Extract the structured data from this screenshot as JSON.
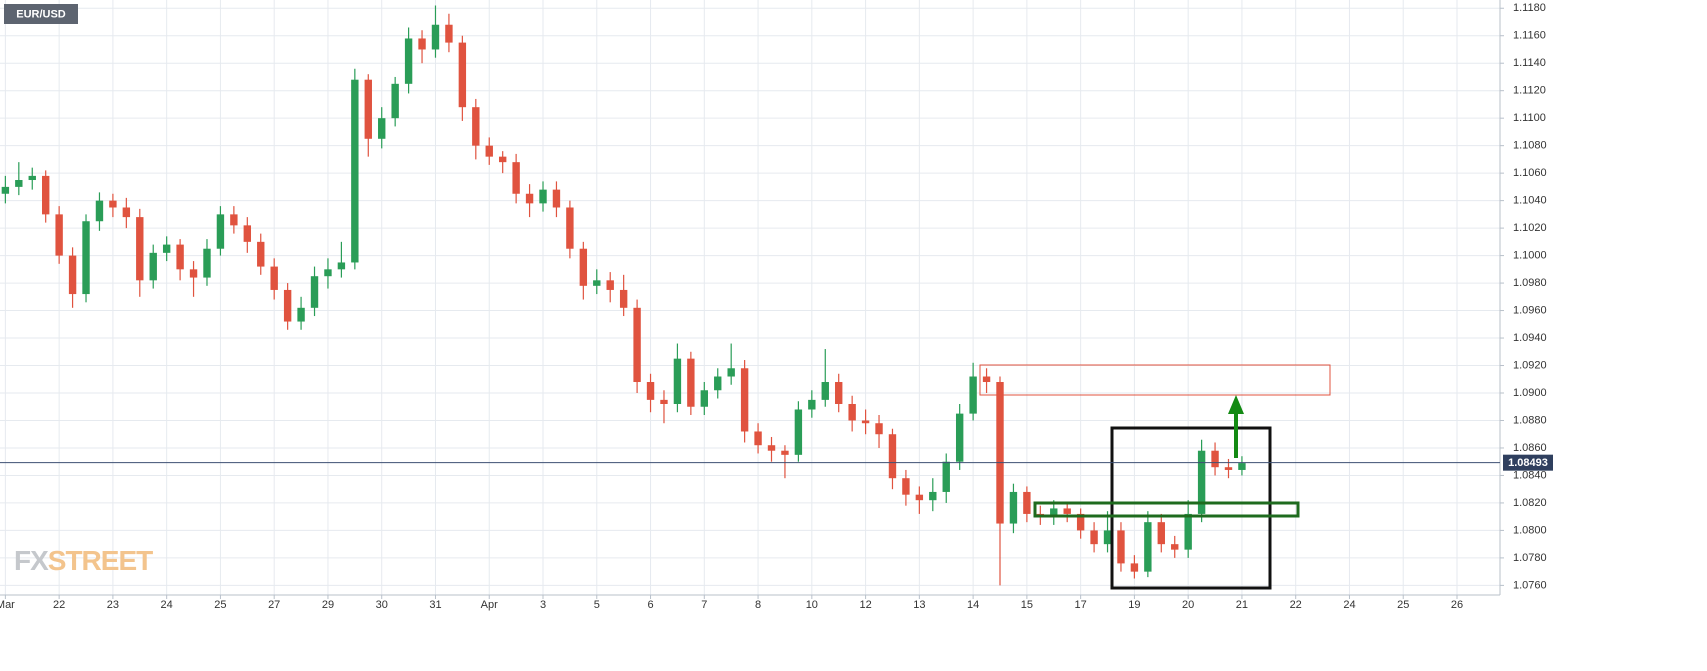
{
  "chart_data": {
    "type": "candlestick",
    "title": "EUR/USD",
    "logo": {
      "left": "FX",
      "right": "STREET"
    },
    "up_color": "#2a9d57",
    "down_color": "#e0533f",
    "grid": true,
    "x": [
      0,
      0.25,
      0.5,
      0.75,
      1,
      1.25,
      1.5,
      1.75,
      2,
      2.25,
      2.5,
      2.75,
      3,
      3.25,
      3.5,
      3.75,
      4,
      4.25,
      4.5,
      4.75,
      5,
      5.25,
      5.5,
      5.75,
      6,
      6.25,
      6.5,
      6.75,
      7,
      7.25,
      7.5,
      7.75,
      8,
      8.25,
      8.5,
      8.75,
      9,
      9.25,
      9.5,
      9.75,
      10,
      10.25,
      10.5,
      10.75,
      11,
      11.25,
      11.5,
      11.75,
      12,
      12.25,
      12.5,
      12.75,
      13,
      13.25,
      13.5,
      13.75,
      14,
      14.25,
      14.5,
      14.75,
      15,
      15.25,
      15.5,
      15.75,
      16,
      16.25,
      16.5,
      16.75,
      17,
      17.25,
      17.5,
      17.75,
      18,
      18.25,
      18.5,
      18.75,
      19,
      19.25,
      19.5,
      19.75,
      20,
      20.25,
      20.5,
      20.75,
      21,
      21.25,
      21.5,
      21.75,
      22,
      22.25,
      22.5,
      22.75,
      23
    ],
    "open": [
      1.1045,
      1.105,
      1.1055,
      1.1058,
      1.103,
      1.1,
      1.0972,
      1.1025,
      1.104,
      1.1035,
      1.1028,
      1.0982,
      1.1002,
      1.1008,
      1.099,
      1.0984,
      1.1005,
      1.103,
      1.1022,
      1.101,
      1.0992,
      1.0975,
      1.0952,
      1.0962,
      1.0985,
      1.099,
      1.0995,
      1.1128,
      1.1085,
      1.11,
      1.1125,
      1.1158,
      1.115,
      1.1168,
      1.1155,
      1.1108,
      1.108,
      1.1072,
      1.1068,
      1.1045,
      1.1038,
      1.1048,
      1.1035,
      1.1005,
      1.0978,
      1.0982,
      1.0975,
      1.0962,
      1.0908,
      1.0895,
      1.0892,
      1.0925,
      1.089,
      1.0902,
      1.0912,
      1.0918,
      1.0872,
      1.0862,
      1.0858,
      1.0855,
      1.0888,
      1.0895,
      1.0908,
      1.0892,
      1.088,
      1.0878,
      1.087,
      1.0838,
      1.0826,
      1.0822,
      1.0828,
      1.085,
      1.0885,
      1.0912,
      1.0908,
      1.0805,
      1.0828,
      1.0812,
      1.081,
      1.0816,
      1.0812,
      1.08,
      1.079,
      1.08,
      1.0776,
      1.077,
      1.0806,
      1.079,
      1.0786,
      1.0812,
      1.0858,
      1.0846,
      1.0844
    ],
    "high": [
      1.1058,
      1.1068,
      1.1064,
      1.1062,
      1.1036,
      1.1006,
      1.103,
      1.1046,
      1.1045,
      1.1042,
      1.1034,
      1.1008,
      1.1014,
      1.1012,
      1.0996,
      1.1012,
      1.1036,
      1.1036,
      1.1028,
      1.1016,
      1.0998,
      1.098,
      1.097,
      1.0992,
      1.0998,
      1.101,
      1.1136,
      1.1132,
      1.1108,
      1.113,
      1.1166,
      1.1164,
      1.1182,
      1.1176,
      1.116,
      1.1114,
      1.1086,
      1.1076,
      1.1074,
      1.1052,
      1.1054,
      1.1054,
      1.104,
      1.101,
      1.099,
      1.0988,
      1.0986,
      1.0968,
      1.0914,
      1.0902,
      1.0936,
      1.093,
      1.0908,
      1.0918,
      1.0936,
      1.0924,
      1.0878,
      1.0868,
      1.0862,
      1.0894,
      1.0902,
      1.0932,
      1.0914,
      1.0898,
      1.0888,
      1.0884,
      1.0874,
      1.0844,
      1.0832,
      1.0838,
      1.0856,
      1.0892,
      1.0922,
      1.0918,
      1.0912,
      1.0834,
      1.0832,
      1.0818,
      1.0822,
      1.082,
      1.0816,
      1.0806,
      1.0814,
      1.0806,
      1.0782,
      1.0814,
      1.0812,
      1.0796,
      1.0822,
      1.0866,
      1.0864,
      1.0852,
      1.0854
    ],
    "low": [
      1.1038,
      1.1044,
      1.1048,
      1.1024,
      1.0994,
      1.0962,
      1.0966,
      1.1018,
      1.1028,
      1.102,
      1.097,
      1.0976,
      1.0996,
      1.0982,
      1.097,
      1.0978,
      1.1,
      1.1016,
      1.1002,
      1.0986,
      1.0968,
      1.0946,
      1.0946,
      1.0956,
      1.0976,
      1.0984,
      1.099,
      1.1072,
      1.1078,
      1.1094,
      1.1118,
      1.114,
      1.1144,
      1.1148,
      1.1098,
      1.107,
      1.1066,
      1.106,
      1.1038,
      1.1028,
      1.1032,
      1.1028,
      1.0998,
      1.0968,
      1.0972,
      1.0966,
      1.0956,
      1.09,
      1.0886,
      1.0878,
      1.0886,
      1.0884,
      1.0884,
      1.0896,
      1.0906,
      1.0864,
      1.0856,
      1.085,
      1.0838,
      1.085,
      1.0882,
      1.089,
      1.0886,
      1.0872,
      1.087,
      1.086,
      1.083,
      1.0818,
      1.0812,
      1.0814,
      1.082,
      1.0844,
      1.088,
      1.09,
      1.076,
      1.0798,
      1.0806,
      1.0804,
      1.0804,
      1.0806,
      1.0794,
      1.0784,
      1.0784,
      1.077,
      1.0765,
      1.0766,
      1.0784,
      1.078,
      1.078,
      1.0806,
      1.084,
      1.0838,
      1.084
    ],
    "close": [
      1.105,
      1.1055,
      1.1058,
      1.103,
      1.1,
      1.0972,
      1.1025,
      1.104,
      1.1035,
      1.1028,
      1.0982,
      1.1002,
      1.1008,
      1.099,
      1.0984,
      1.1005,
      1.103,
      1.1022,
      1.101,
      1.0992,
      1.0975,
      1.0952,
      1.0962,
      1.0985,
      1.099,
      1.0995,
      1.1128,
      1.1085,
      1.11,
      1.1125,
      1.1158,
      1.115,
      1.1168,
      1.1155,
      1.1108,
      1.108,
      1.1072,
      1.1068,
      1.1045,
      1.1038,
      1.1048,
      1.1035,
      1.1005,
      1.0978,
      1.0982,
      1.0975,
      1.0962,
      1.0908,
      1.0895,
      1.0892,
      1.0925,
      1.089,
      1.0902,
      1.0912,
      1.0918,
      1.0872,
      1.0862,
      1.0858,
      1.0855,
      1.0888,
      1.0895,
      1.0908,
      1.0892,
      1.088,
      1.0878,
      1.087,
      1.0838,
      1.0826,
      1.0822,
      1.0828,
      1.085,
      1.0885,
      1.0912,
      1.0908,
      1.0805,
      1.0828,
      1.0812,
      1.081,
      1.0816,
      1.0812,
      1.08,
      1.079,
      1.08,
      1.0776,
      1.077,
      1.0806,
      1.079,
      1.0786,
      1.0812,
      1.0858,
      1.0846,
      1.0844,
      1.0849
    ],
    "last_price": {
      "value": 1.08493,
      "label": "1.08493"
    },
    "xlim": [
      -0.1,
      27.8
    ],
    "xticks": [
      {
        "value": 0,
        "label": "Mar"
      },
      {
        "value": 1,
        "label": "22"
      },
      {
        "value": 2,
        "label": "23"
      },
      {
        "value": 3,
        "label": "24"
      },
      {
        "value": 4,
        "label": "25"
      },
      {
        "value": 5,
        "label": "27"
      },
      {
        "value": 6,
        "label": "29"
      },
      {
        "value": 7,
        "label": "30"
      },
      {
        "value": 8,
        "label": "31"
      },
      {
        "value": 9,
        "label": "Apr"
      },
      {
        "value": 10,
        "label": "3"
      },
      {
        "value": 11,
        "label": "5"
      },
      {
        "value": 12,
        "label": "6"
      },
      {
        "value": 13,
        "label": "7"
      },
      {
        "value": 14,
        "label": "8"
      },
      {
        "value": 15,
        "label": "10"
      },
      {
        "value": 16,
        "label": "12"
      },
      {
        "value": 17,
        "label": "13"
      },
      {
        "value": 18,
        "label": "14"
      },
      {
        "value": 19,
        "label": "15"
      },
      {
        "value": 20,
        "label": "17"
      },
      {
        "value": 21,
        "label": "19"
      },
      {
        "value": 22,
        "label": "20"
      },
      {
        "value": 23,
        "label": "21"
      },
      {
        "value": 24,
        "label": "22"
      },
      {
        "value": 25,
        "label": "24"
      },
      {
        "value": 26,
        "label": "25"
      },
      {
        "value": 27,
        "label": "26"
      }
    ],
    "ylim": [
      1.0753,
      1.1186
    ],
    "yticks": [
      {
        "value": 1.076,
        "label": "1.0760"
      },
      {
        "value": 1.078,
        "label": "1.0780"
      },
      {
        "value": 1.08,
        "label": "1.0800"
      },
      {
        "value": 1.082,
        "label": "1.0820"
      },
      {
        "value": 1.084,
        "label": "1.0840"
      },
      {
        "value": 1.086,
        "label": "1.0860"
      },
      {
        "value": 1.088,
        "label": "1.0880"
      },
      {
        "value": 1.09,
        "label": "1.0900"
      },
      {
        "value": 1.092,
        "label": "1.0920"
      },
      {
        "value": 1.094,
        "label": "1.0940"
      },
      {
        "value": 1.096,
        "label": "1.0960"
      },
      {
        "value": 1.098,
        "label": "1.0980"
      },
      {
        "value": 1.1,
        "label": "1.1000"
      },
      {
        "value": 1.102,
        "label": "1.1020"
      },
      {
        "value": 1.104,
        "label": "1.1040"
      },
      {
        "value": 1.106,
        "label": "1.1060"
      },
      {
        "value": 1.108,
        "label": "1.1080"
      },
      {
        "value": 1.11,
        "label": "1.1100"
      },
      {
        "value": 1.112,
        "label": "1.1120"
      },
      {
        "value": 1.114,
        "label": "1.1140"
      },
      {
        "value": 1.116,
        "label": "1.1160"
      },
      {
        "value": 1.118,
        "label": "1.1180"
      }
    ]
  }
}
